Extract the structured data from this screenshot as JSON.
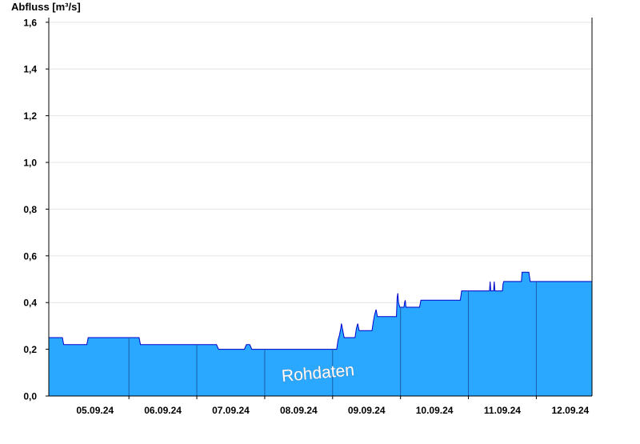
{
  "chart_data": {
    "type": "area",
    "ylabel": "Abfluss [m³/s]",
    "xlabel": "",
    "title": "",
    "watermark": "Rohdaten",
    "ylim": [
      0,
      1.62
    ],
    "yticks": [
      {
        "value": 0.0,
        "label": "0,0"
      },
      {
        "value": 0.2,
        "label": "0,2"
      },
      {
        "value": 0.4,
        "label": "0,4"
      },
      {
        "value": 0.6,
        "label": "0,6"
      },
      {
        "value": 0.8,
        "label": "0,8"
      },
      {
        "value": 1.0,
        "label": "1,0"
      },
      {
        "value": 1.2,
        "label": "1,2"
      },
      {
        "value": 1.4,
        "label": "1,4"
      },
      {
        "value": 1.6,
        "label": "1,6"
      }
    ],
    "xlim": [
      -0.18,
      7.82
    ],
    "xticks": [
      {
        "value": 0.5,
        "label": "05.09.24"
      },
      {
        "value": 1.5,
        "label": "06.09.24"
      },
      {
        "value": 2.5,
        "label": "07.09.24"
      },
      {
        "value": 3.5,
        "label": "08.09.24"
      },
      {
        "value": 4.5,
        "label": "09.09.24"
      },
      {
        "value": 5.5,
        "label": "10.09.24"
      },
      {
        "value": 6.5,
        "label": "11.09.24"
      },
      {
        "value": 7.5,
        "label": "12.09.24"
      }
    ],
    "day_boundaries": [
      1,
      2,
      3,
      4,
      5,
      6,
      7
    ],
    "colors": {
      "fill": "#2aa8ff",
      "line": "#0000cc",
      "grid": "#e4e4e4",
      "axis": "#000000",
      "watermark": "#ffffff"
    },
    "series": [
      {
        "points": [
          [
            -0.18,
            0.25
          ],
          [
            0.02,
            0.25
          ],
          [
            0.04,
            0.22
          ],
          [
            0.38,
            0.22
          ],
          [
            0.4,
            0.25
          ],
          [
            0.95,
            0.25
          ],
          [
            1.15,
            0.25
          ],
          [
            1.17,
            0.22
          ],
          [
            2.29,
            0.22
          ],
          [
            2.32,
            0.2
          ],
          [
            2.7,
            0.2
          ],
          [
            2.73,
            0.22
          ],
          [
            2.78,
            0.22
          ],
          [
            2.81,
            0.2
          ],
          [
            3.0,
            0.2
          ],
          [
            4.06,
            0.2
          ],
          [
            4.08,
            0.24
          ],
          [
            4.1,
            0.26
          ],
          [
            4.12,
            0.29
          ],
          [
            4.13,
            0.31
          ],
          [
            4.15,
            0.28
          ],
          [
            4.17,
            0.25
          ],
          [
            4.33,
            0.25
          ],
          [
            4.35,
            0.29
          ],
          [
            4.37,
            0.31
          ],
          [
            4.39,
            0.28
          ],
          [
            4.58,
            0.28
          ],
          [
            4.6,
            0.32
          ],
          [
            4.62,
            0.35
          ],
          [
            4.64,
            0.37
          ],
          [
            4.66,
            0.34
          ],
          [
            4.94,
            0.34
          ],
          [
            4.95,
            0.42
          ],
          [
            4.96,
            0.44
          ],
          [
            4.97,
            0.4
          ],
          [
            4.99,
            0.38
          ],
          [
            5.05,
            0.38
          ],
          [
            5.06,
            0.4
          ],
          [
            5.07,
            0.41
          ],
          [
            5.08,
            0.38
          ],
          [
            5.28,
            0.38
          ],
          [
            5.3,
            0.41
          ],
          [
            5.88,
            0.41
          ],
          [
            5.9,
            0.45
          ],
          [
            6.31,
            0.45
          ],
          [
            6.32,
            0.49
          ],
          [
            6.33,
            0.45
          ],
          [
            6.37,
            0.45
          ],
          [
            6.38,
            0.49
          ],
          [
            6.39,
            0.45
          ],
          [
            6.5,
            0.45
          ],
          [
            6.51,
            0.48
          ],
          [
            6.52,
            0.49
          ],
          [
            6.53,
            0.49
          ],
          [
            6.78,
            0.49
          ],
          [
            6.79,
            0.53
          ],
          [
            6.89,
            0.53
          ],
          [
            6.91,
            0.49
          ],
          [
            7.0,
            0.49
          ],
          [
            7.82,
            0.49
          ]
        ]
      }
    ]
  }
}
